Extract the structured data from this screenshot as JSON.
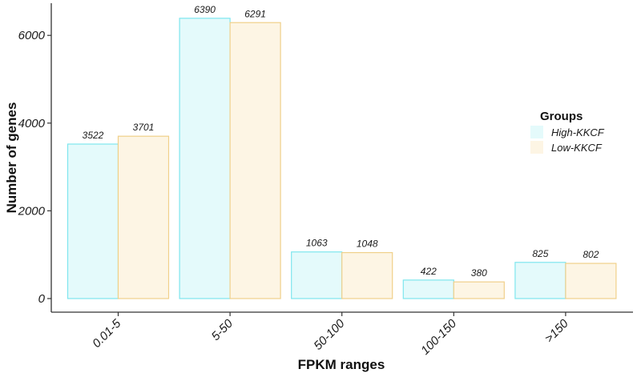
{
  "chart_data": {
    "type": "bar",
    "title": "",
    "xlabel": "FPKM ranges",
    "ylabel": "Number of genes",
    "categories": [
      "0.01-5",
      "5-50",
      "50-100",
      "100-150",
      ">150"
    ],
    "series": [
      {
        "name": "High-KKCF",
        "values": [
          3522,
          6390,
          1063,
          422,
          825
        ],
        "fill": "#e4fafb",
        "stroke": "#7ee6ee"
      },
      {
        "name": "Low-KKCF",
        "values": [
          3701,
          6291,
          1048,
          380,
          802
        ],
        "fill": "#fdf5e4",
        "stroke": "#f0d08a"
      }
    ],
    "ylim": [
      0,
      6400
    ],
    "yticks": [
      "0",
      "2000",
      "4000",
      "6000"
    ],
    "legend": {
      "title": "Groups",
      "position": "right"
    },
    "grid": false
  }
}
